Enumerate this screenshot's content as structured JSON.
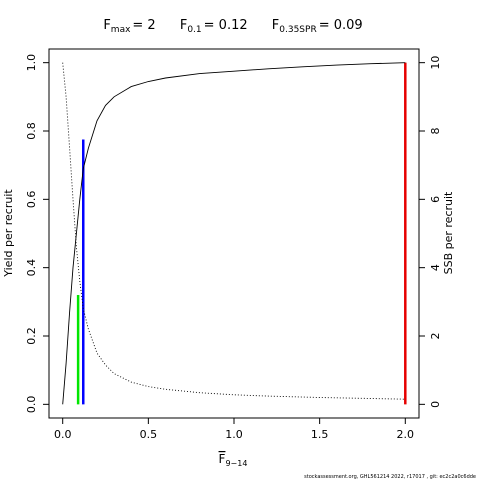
{
  "chart_data": {
    "type": "line",
    "title_parts": {
      "fmax_label": "F",
      "fmax_sub": "max",
      "fmax_value": "= 2",
      "f01_label": "F",
      "f01_sub": "0.1",
      "f01_value": "= 0.12",
      "fspr_label": "F",
      "fspr_sub": "0.35SPR",
      "fspr_value": "= 0.09"
    },
    "xlabel": "F",
    "xlabel_sub": "9−14",
    "ylabel_left": "Yield per recruit",
    "ylabel_right": "SSB per recruit",
    "xlim": [
      -0.08,
      2.08
    ],
    "ylim_left": [
      -0.04,
      1.04
    ],
    "ylim_right": [
      -0.4,
      10.4
    ],
    "x_ticks": [
      0,
      0.5,
      1,
      1.5,
      2
    ],
    "x_tick_labels": [
      "0.0",
      "0.5",
      "1.0",
      "1.5",
      "2.0"
    ],
    "y_left_ticks": [
      0,
      0.2,
      0.4,
      0.6,
      0.8,
      1
    ],
    "y_left_tick_labels": [
      "0.0",
      "0.2",
      "0.4",
      "0.6",
      "0.8",
      "1.0"
    ],
    "y_right_ticks": [
      0,
      2,
      4,
      6,
      8,
      10
    ],
    "y_right_tick_labels": [
      "0",
      "2",
      "4",
      "6",
      "8",
      "10"
    ],
    "series": [
      {
        "style": "solid",
        "axis": "left",
        "points": [
          [
            0,
            0
          ],
          [
            0.02,
            0.12
          ],
          [
            0.04,
            0.27
          ],
          [
            0.06,
            0.4
          ],
          [
            0.08,
            0.5
          ],
          [
            0.1,
            0.6
          ],
          [
            0.12,
            0.69
          ],
          [
            0.15,
            0.75
          ],
          [
            0.2,
            0.83
          ],
          [
            0.25,
            0.875
          ],
          [
            0.3,
            0.9
          ],
          [
            0.4,
            0.93
          ],
          [
            0.5,
            0.945
          ],
          [
            0.6,
            0.955
          ],
          [
            0.8,
            0.968
          ],
          [
            1.0,
            0.975
          ],
          [
            1.2,
            0.982
          ],
          [
            1.4,
            0.988
          ],
          [
            1.6,
            0.993
          ],
          [
            1.8,
            0.997
          ],
          [
            2.0,
            1.0
          ]
        ]
      },
      {
        "style": "dotted",
        "axis": "left",
        "points": [
          [
            0,
            1.0
          ],
          [
            0.02,
            0.9
          ],
          [
            0.04,
            0.75
          ],
          [
            0.06,
            0.6
          ],
          [
            0.08,
            0.46
          ],
          [
            0.1,
            0.36
          ],
          [
            0.12,
            0.28
          ],
          [
            0.15,
            0.22
          ],
          [
            0.2,
            0.15
          ],
          [
            0.25,
            0.115
          ],
          [
            0.3,
            0.09
          ],
          [
            0.4,
            0.065
          ],
          [
            0.5,
            0.052
          ],
          [
            0.6,
            0.044
          ],
          [
            0.8,
            0.034
          ],
          [
            1.0,
            0.028
          ],
          [
            1.2,
            0.024
          ],
          [
            1.5,
            0.02
          ],
          [
            1.8,
            0.017
          ],
          [
            2.0,
            0.015
          ]
        ]
      }
    ],
    "reference_lines": [
      {
        "x": 0.09,
        "y_top": 0.32,
        "color": "#00e600"
      },
      {
        "x": 0.12,
        "y_top": 0.775,
        "color": "#0000ff"
      },
      {
        "x": 2.0,
        "y_top": 1.0,
        "color": "#e60000"
      }
    ]
  },
  "footer": {
    "text": "stockassessment.org, GHL561214 2022, r17017 , git: ec2c2a0c6dde"
  }
}
